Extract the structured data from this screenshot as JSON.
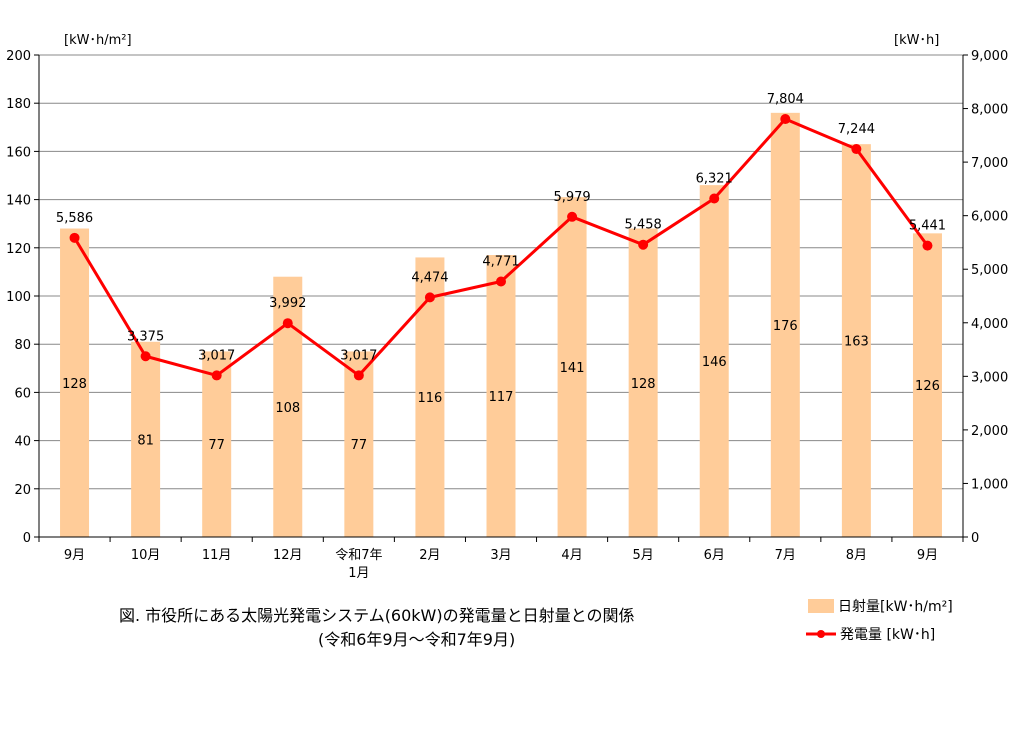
{
  "chart_data": {
    "type": "bar+line",
    "categories": [
      "9月",
      "10月",
      "11月",
      "12月",
      "令和7年\n1月",
      "2月",
      "3月",
      "4月",
      "5月",
      "6月",
      "7月",
      "8月",
      "9月"
    ],
    "series": [
      {
        "name": "日射量[kW･h/m²]",
        "kind": "bar",
        "axis": "left",
        "color": "#FFCC99",
        "values": [
          128,
          81,
          77,
          108,
          77,
          116,
          117,
          141,
          128,
          146,
          176,
          163,
          126
        ],
        "labels": [
          "128",
          "81",
          "77",
          "108",
          "77",
          "116",
          "117",
          "141",
          "128",
          "146",
          "176",
          "163",
          "126"
        ]
      },
      {
        "name": "発電量 [kW･h]",
        "kind": "line",
        "axis": "right",
        "color": "#FF0000",
        "values": [
          5586,
          3375,
          3017,
          3992,
          3017,
          4474,
          4771,
          5979,
          5458,
          6321,
          7804,
          7244,
          5441
        ],
        "labels": [
          "5,586",
          "3,375",
          "3,017",
          "3,992",
          "3,017",
          "4,474",
          "4,771",
          "5,979",
          "5,458",
          "6,321",
          "7,804",
          "7,244",
          "5,441"
        ]
      }
    ],
    "left_axis": {
      "label": "[kW･h/m²]",
      "ylim": [
        0,
        200
      ],
      "ticks": [
        "0",
        "20",
        "40",
        "60",
        "80",
        "100",
        "120",
        "140",
        "160",
        "180",
        "200"
      ]
    },
    "right_axis": {
      "label": "[kW･h]",
      "ylim": [
        0,
        9000
      ],
      "ticks": [
        "0",
        "1,000",
        "2,000",
        "3,000",
        "4,000",
        "5,000",
        "6,000",
        "7,000",
        "8,000",
        "9,000"
      ]
    },
    "grid": true,
    "legend_position": "bottom-right",
    "caption_line1": "図. 市役所にある太陽光発電システム(60kW)の発電量と日射量との関係",
    "caption_line2": "(令和6年9月～令和7年9月)"
  }
}
